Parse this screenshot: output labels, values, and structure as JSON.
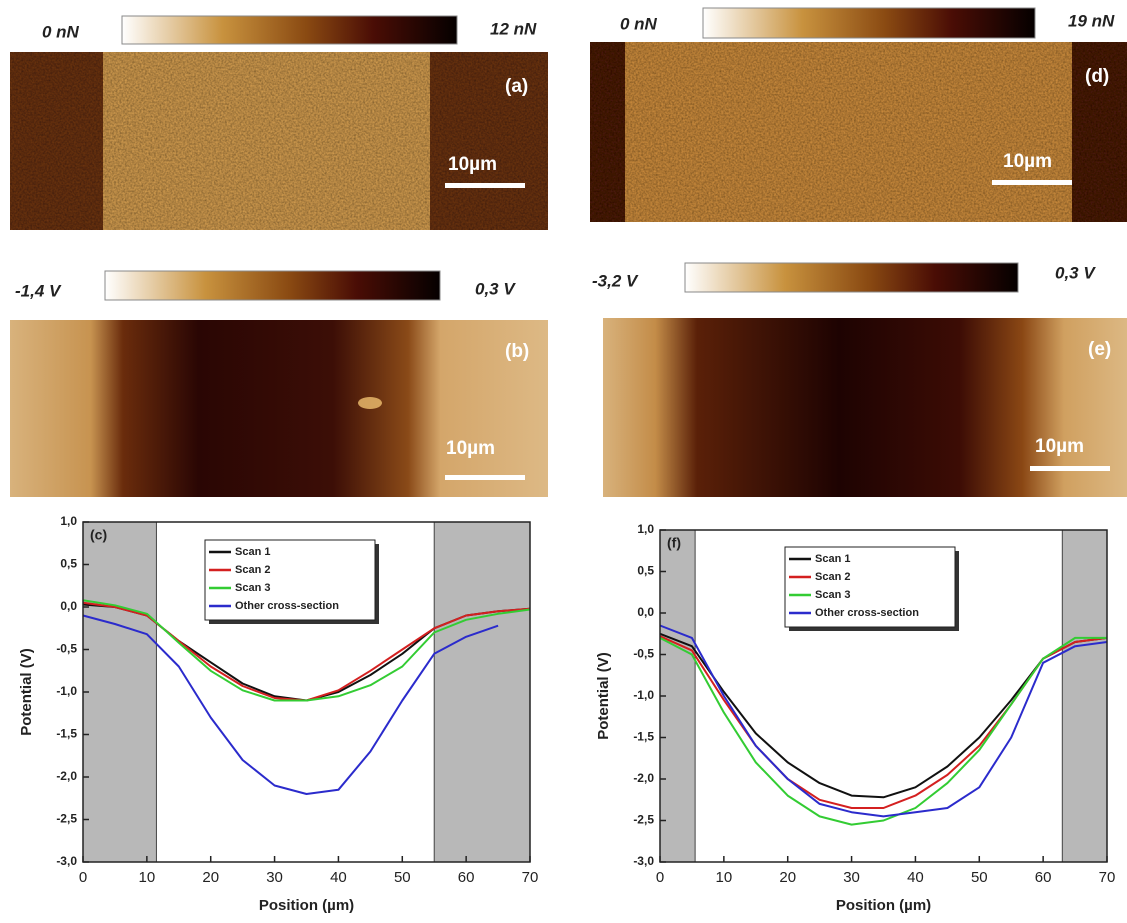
{
  "panels": [
    {
      "label": "(a)",
      "scale_bar": "10µm",
      "colorbar": {
        "min_label": "0 nN",
        "max_label": "12 nN"
      }
    },
    {
      "label": "(b)",
      "scale_bar": "10µm",
      "colorbar": {
        "min_label": "-1,4 V",
        "max_label": "0,3 V"
      }
    },
    {
      "label": "(d)",
      "scale_bar": "10µm",
      "colorbar": {
        "min_label": "0 nN",
        "max_label": "19 nN"
      }
    },
    {
      "label": "(e)",
      "scale_bar": "10µm",
      "colorbar": {
        "min_label": "-3,2 V",
        "max_label": "0,3 V"
      }
    }
  ],
  "chart_data": [
    {
      "type": "line",
      "annotation": "(c)",
      "xlabel": "Position (µm)",
      "ylabel": "Potential (V)",
      "xlim": [
        0,
        70
      ],
      "xticks": [
        0,
        10,
        20,
        30,
        40,
        50,
        60,
        70
      ],
      "ylim": [
        -3,
        1
      ],
      "yticks": [
        {
          "value": -3,
          "label": "-3,0"
        },
        {
          "value": -2.5,
          "label": "-2,5"
        },
        {
          "value": -2,
          "label": "-2,0"
        },
        {
          "value": -1.5,
          "label": "-1,5"
        },
        {
          "value": -1,
          "label": "-1,0"
        },
        {
          "value": -0.5,
          "label": "-0,5"
        },
        {
          "value": 0,
          "label": "0,0"
        },
        {
          "value": 0.5,
          "label": "0,5"
        },
        {
          "value": 1,
          "label": "1,0"
        }
      ],
      "shaded_regions": [
        [
          0,
          11.5
        ],
        [
          55,
          70
        ]
      ],
      "shade_color": "#b8b8b8",
      "legend": "upper center",
      "grid": false,
      "x": [
        0,
        5,
        10,
        15,
        20,
        25,
        30,
        35,
        40,
        45,
        50,
        55,
        60,
        65,
        70
      ],
      "series": [
        {
          "name": "Scan 1",
          "color": "#111111",
          "values": [
            0.03,
            0,
            -0.1,
            -0.4,
            -0.65,
            -0.9,
            -1.05,
            -1.1,
            -1.0,
            -0.8,
            -0.55,
            -0.25,
            -0.1,
            -0.05,
            -0.02
          ]
        },
        {
          "name": "Scan 2",
          "color": "#d42020",
          "values": [
            0.05,
            0,
            -0.1,
            -0.4,
            -0.7,
            -0.93,
            -1.07,
            -1.1,
            -0.98,
            -0.75,
            -0.5,
            -0.25,
            -0.1,
            -0.05,
            -0.02
          ]
        },
        {
          "name": "Scan 3",
          "color": "#33cc33",
          "values": [
            0.08,
            0.02,
            -0.08,
            -0.42,
            -0.75,
            -0.98,
            -1.1,
            -1.1,
            -1.05,
            -0.92,
            -0.7,
            -0.3,
            -0.15,
            -0.08,
            -0.03
          ]
        },
        {
          "name": "Other cross-section",
          "color": "#2b2bcc",
          "values": [
            -0.1,
            -0.2,
            -0.32,
            -0.7,
            -1.3,
            -1.8,
            -2.1,
            -2.2,
            -2.15,
            -1.7,
            -1.1,
            -0.55,
            -0.35,
            -0.22,
            null
          ]
        }
      ]
    },
    {
      "type": "line",
      "annotation": "(f)",
      "xlabel": "Position (µm)",
      "ylabel": "Potential (V)",
      "xlim": [
        0,
        70
      ],
      "xticks": [
        0,
        10,
        20,
        30,
        40,
        50,
        60,
        70
      ],
      "ylim": [
        -3,
        1
      ],
      "yticks": [
        {
          "value": -3,
          "label": "-3,0"
        },
        {
          "value": -2.5,
          "label": "-2,5"
        },
        {
          "value": -2,
          "label": "-2,0"
        },
        {
          "value": -1.5,
          "label": "-1,5"
        },
        {
          "value": -1,
          "label": "-1,0"
        },
        {
          "value": -0.5,
          "label": "-0,5"
        },
        {
          "value": 0,
          "label": "0,0"
        },
        {
          "value": 0.5,
          "label": "0,5"
        },
        {
          "value": 1,
          "label": "1,0"
        }
      ],
      "shaded_regions": [
        [
          0,
          5.5
        ],
        [
          63,
          70
        ]
      ],
      "shade_color": "#b8b8b8",
      "legend": "upper center",
      "grid": false,
      "x": [
        0,
        5,
        10,
        15,
        20,
        25,
        30,
        35,
        40,
        45,
        50,
        55,
        60,
        65,
        70
      ],
      "series": [
        {
          "name": "Scan 1",
          "color": "#111111",
          "values": [
            -0.25,
            -0.4,
            -0.95,
            -1.45,
            -1.8,
            -2.05,
            -2.2,
            -2.22,
            -2.1,
            -1.85,
            -1.5,
            -1.05,
            -0.55,
            -0.35,
            -0.3
          ]
        },
        {
          "name": "Scan 2",
          "color": "#d42020",
          "values": [
            -0.28,
            -0.45,
            -1.05,
            -1.6,
            -2.0,
            -2.25,
            -2.35,
            -2.35,
            -2.2,
            -1.95,
            -1.6,
            -1.1,
            -0.55,
            -0.35,
            -0.3
          ]
        },
        {
          "name": "Scan 3",
          "color": "#33cc33",
          "values": [
            -0.3,
            -0.5,
            -1.2,
            -1.8,
            -2.2,
            -2.45,
            -2.55,
            -2.5,
            -2.35,
            -2.05,
            -1.65,
            -1.1,
            -0.55,
            -0.3,
            -0.3
          ]
        },
        {
          "name": "Other cross-section",
          "color": "#2b2bcc",
          "values": [
            -0.15,
            -0.3,
            -1.0,
            -1.6,
            -2.0,
            -2.3,
            -2.4,
            -2.45,
            -2.4,
            -2.35,
            -2.1,
            -1.5,
            -0.6,
            -0.4,
            -0.35
          ]
        }
      ]
    }
  ]
}
